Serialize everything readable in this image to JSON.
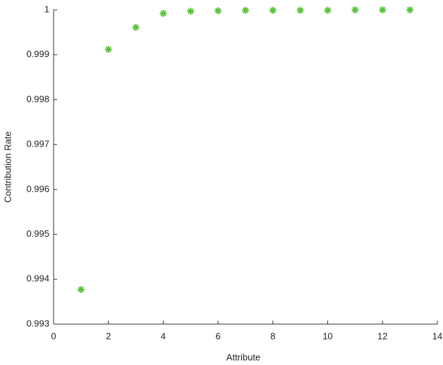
{
  "chart_data": {
    "type": "scatter",
    "xlabel": "Attribute",
    "ylabel": "Contribution Rate",
    "series": [
      {
        "name": "Contribution Rate",
        "color": "#5cc43c",
        "x": [
          1,
          2,
          3,
          4,
          5,
          6,
          7,
          8,
          9,
          10,
          11,
          12,
          13
        ],
        "values": [
          0.99377,
          0.99912,
          0.99961,
          0.99992,
          0.99997,
          0.99998,
          0.99999,
          0.99999,
          0.99999,
          0.99999,
          1,
          1,
          1
        ]
      }
    ],
    "xlim": [
      0,
      14
    ],
    "xticks": [
      0,
      2,
      4,
      6,
      8,
      10,
      12,
      14
    ],
    "ylim": [
      0.993,
      1
    ],
    "yticks": [
      0.993,
      0.994,
      0.995,
      0.996,
      0.997,
      0.998,
      0.999,
      1
    ]
  }
}
